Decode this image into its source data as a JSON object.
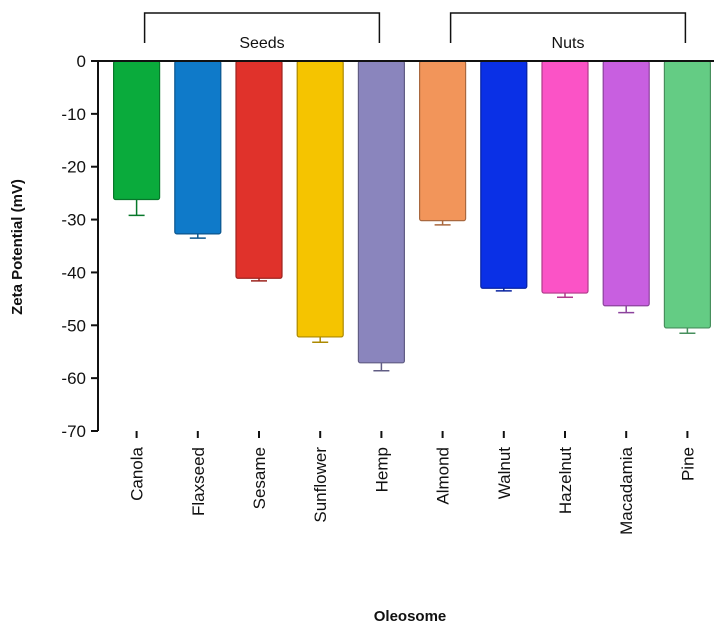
{
  "chart_data": {
    "type": "bar",
    "title": "",
    "xlabel": "Oleosome",
    "ylabel": "Zeta Potential (mV)",
    "ylim": [
      -70,
      0
    ],
    "yticks": [
      0,
      -10,
      -20,
      -30,
      -40,
      -50,
      -60,
      -70
    ],
    "grid": false,
    "categories": [
      "Canola",
      "Flaxseed",
      "Sesame",
      "Sunflower",
      "Hemp",
      "Almond",
      "Walnut",
      "Hazelnut",
      "Macadamia",
      "Pine"
    ],
    "values": [
      -26.2,
      -32.7,
      -41.1,
      -52.2,
      -57.1,
      -30.2,
      -43.0,
      -43.9,
      -46.3,
      -50.5
    ],
    "errors": [
      3.0,
      0.8,
      0.5,
      1.0,
      1.5,
      0.8,
      0.5,
      0.8,
      1.3,
      1.0
    ],
    "colors": [
      "#0aab3c",
      "#0f7ac9",
      "#e0322b",
      "#f5c400",
      "#8a85bd",
      "#f2955a",
      "#0a30e6",
      "#fb53c6",
      "#c85fe0",
      "#64cc84"
    ],
    "groups": [
      {
        "label": "Seeds",
        "from": 0,
        "to": 4
      },
      {
        "label": "Nuts",
        "from": 5,
        "to": 9
      }
    ]
  }
}
